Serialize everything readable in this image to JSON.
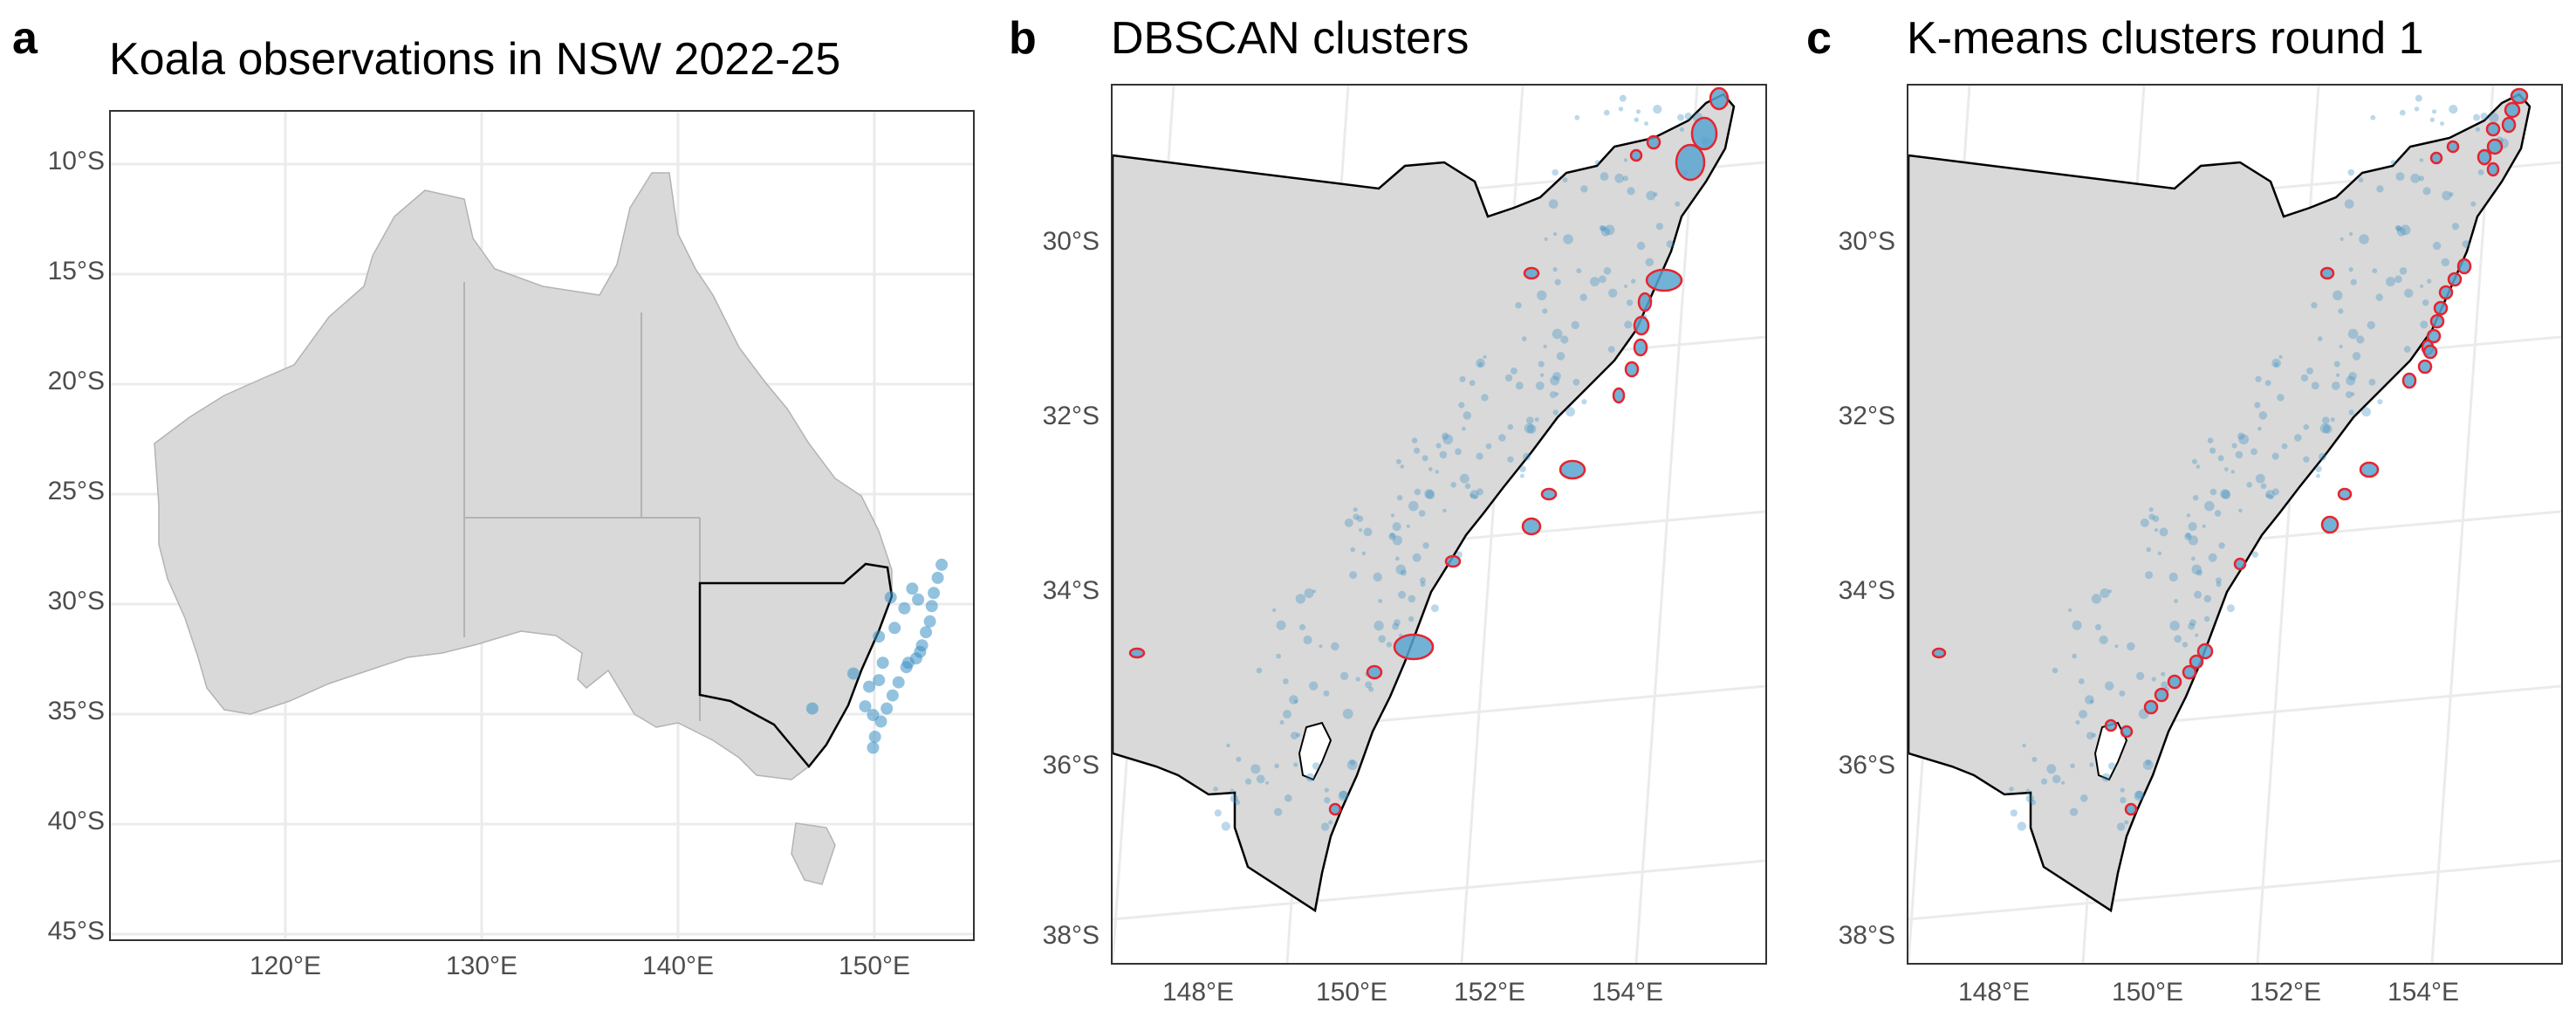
{
  "panels": [
    {
      "letter": "a",
      "title": "Koala observations in NSW 2022-25",
      "y_ticks": [
        "10°S",
        "15°S",
        "20°S",
        "25°S",
        "30°S",
        "35°S",
        "40°S",
        "45°S"
      ],
      "x_ticks": [
        "120°E",
        "130°E",
        "140°E",
        "150°E"
      ]
    },
    {
      "letter": "b",
      "title": "DBSCAN clusters",
      "y_ticks": [
        "30°S",
        "32°S",
        "34°S",
        "36°S",
        "38°S"
      ],
      "x_ticks": [
        "148°E",
        "150°E",
        "152°E",
        "154°E"
      ]
    },
    {
      "letter": "c",
      "title": "K-means clusters round 1",
      "y_ticks": [
        "30°S",
        "32°S",
        "34°S",
        "36°S",
        "38°S"
      ],
      "x_ticks": [
        "148°E",
        "150°E",
        "152°E",
        "154°E"
      ]
    }
  ],
  "colors": {
    "land": "#d9d9d9",
    "grid": "#ebebeb",
    "border": "#000000",
    "state_lines": "#b3b3b3",
    "observations": "#3a90c4",
    "cluster_outline": "#e8232d",
    "cluster_fill": "#5aa5d0"
  },
  "chart_data": [
    {
      "type": "scatter",
      "title": "Koala observations in NSW 2022-25",
      "xlim": [
        111,
        155
      ],
      "ylim": [
        -45.5,
        -7.5
      ],
      "x_ticks": [
        120,
        130,
        140,
        150
      ],
      "y_ticks": [
        -10,
        -15,
        -20,
        -25,
        -30,
        -35,
        -40,
        -45
      ],
      "observation_points": [
        [
          153.4,
          -28.3
        ],
        [
          153.2,
          -28.9
        ],
        [
          153.0,
          -29.6
        ],
        [
          152.9,
          -30.2
        ],
        [
          152.8,
          -30.9
        ],
        [
          152.6,
          -31.4
        ],
        [
          152.4,
          -32.0
        ],
        [
          152.1,
          -32.6
        ],
        [
          151.6,
          -33.0
        ],
        [
          151.2,
          -33.7
        ],
        [
          150.9,
          -34.3
        ],
        [
          150.6,
          -34.9
        ],
        [
          150.3,
          -35.5
        ],
        [
          150.0,
          -36.2
        ],
        [
          149.9,
          -36.7
        ],
        [
          151.5,
          -30.3
        ],
        [
          151.0,
          -31.2
        ],
        [
          150.4,
          -32.8
        ],
        [
          150.2,
          -33.6
        ],
        [
          149.5,
          -34.8
        ],
        [
          148.9,
          -33.3
        ],
        [
          150.8,
          -29.8
        ],
        [
          151.9,
          -29.4
        ],
        [
          152.2,
          -29.9
        ],
        [
          146.8,
          -34.9
        ],
        [
          149.7,
          -33.9
        ],
        [
          150.2,
          -31.6
        ],
        [
          152.3,
          -32.3
        ],
        [
          151.7,
          -32.8
        ],
        [
          149.9,
          -35.2
        ]
      ]
    },
    {
      "type": "scatter",
      "title": "DBSCAN clusters",
      "xlim": [
        146.5,
        155.7
      ],
      "ylim": [
        -38.3,
        -28.9
      ],
      "x_ticks": [
        148,
        150,
        152,
        154
      ],
      "y_ticks": [
        -30,
        -32,
        -34,
        -36,
        -38
      ],
      "cluster_count": 26
    },
    {
      "type": "scatter",
      "title": "K-means clusters round 1",
      "xlim": [
        146.5,
        155.7
      ],
      "ylim": [
        -38.3,
        -28.9
      ],
      "x_ticks": [
        148,
        150,
        152,
        154
      ],
      "y_ticks": [
        -30,
        -32,
        -34,
        -36,
        -38
      ],
      "cluster_count": 36
    }
  ]
}
